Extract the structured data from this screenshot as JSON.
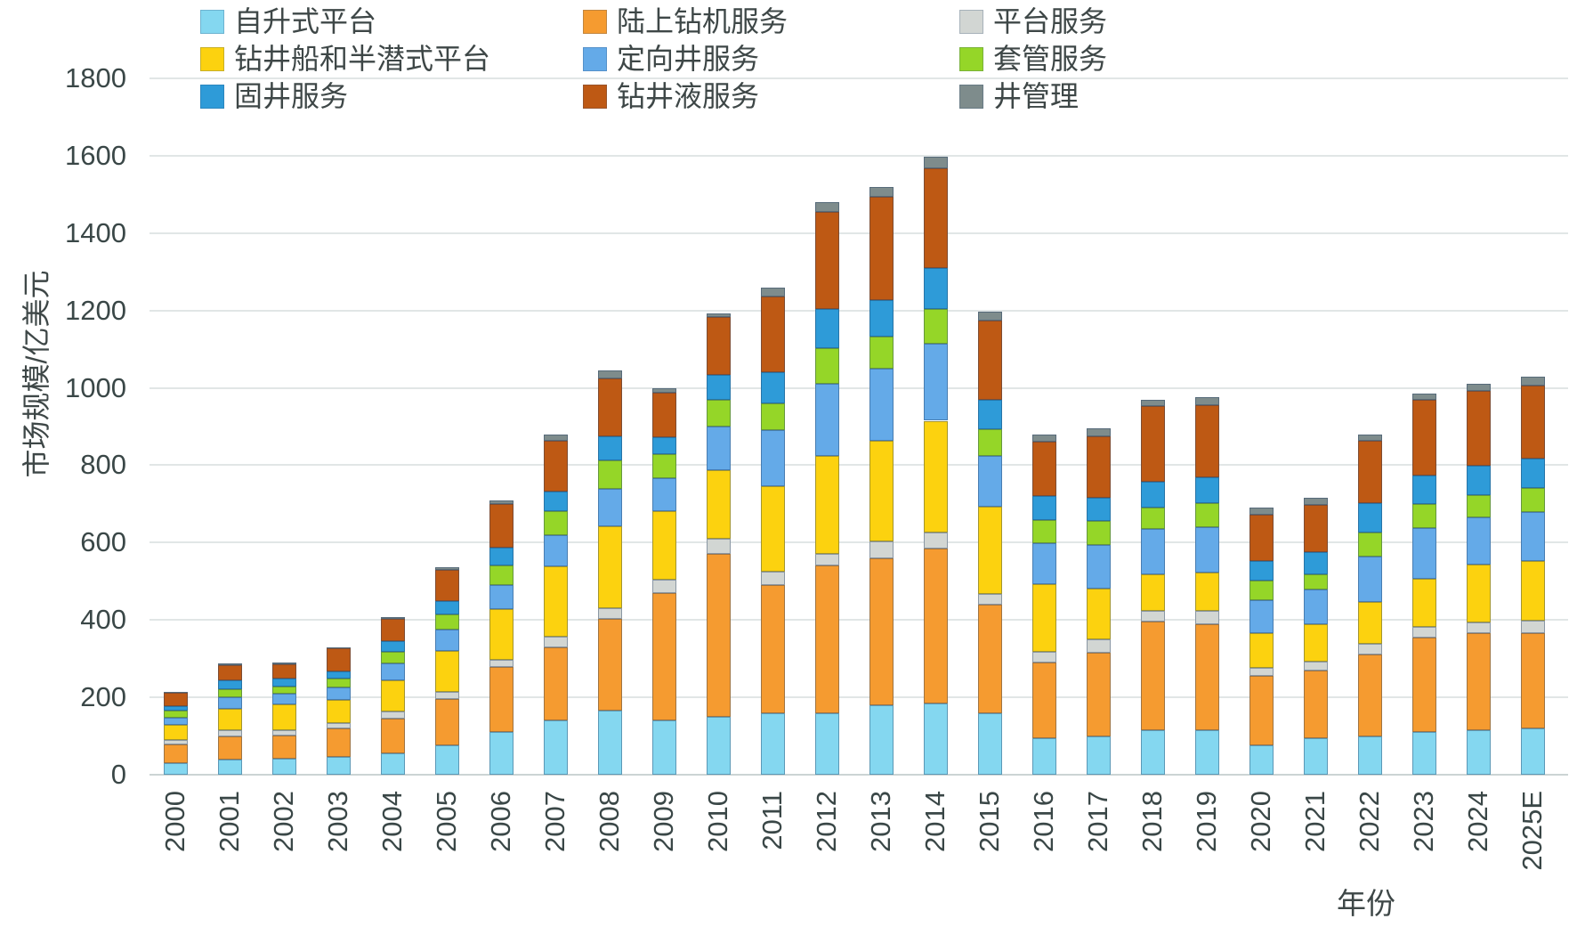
{
  "chart_data": {
    "type": "bar",
    "stacked": true,
    "title": "",
    "xlabel": "年份",
    "ylabel": "市场规模/亿美元",
    "ylim": [
      0,
      1800
    ],
    "ytick_step": 200,
    "yticks": [
      0,
      200,
      400,
      600,
      800,
      1000,
      1200,
      1400,
      1600,
      1800
    ],
    "grid": true,
    "legend_position": "top",
    "categories": [
      "2000",
      "2001",
      "2002",
      "2003",
      "2004",
      "2005",
      "2006",
      "2007",
      "2008",
      "2009",
      "2010",
      "2011",
      "2012",
      "2013",
      "2014",
      "2015",
      "2016",
      "2017",
      "2018",
      "2019",
      "2020",
      "2021",
      "2022",
      "2023",
      "2024",
      "2025E"
    ],
    "series": [
      {
        "key": "jackup-platform",
        "name": "自升式平台",
        "color": "#84d7f0",
        "values": [
          30,
          39,
          42,
          46,
          55,
          75,
          110,
          140,
          165,
          140,
          150,
          160,
          160,
          180,
          185,
          160,
          95,
          100,
          115,
          115,
          75,
          95,
          100,
          110,
          115,
          120
        ]
      },
      {
        "key": "onshore-rig-services",
        "name": "陆上钻机服务",
        "color": "#f59b30",
        "values": [
          48,
          61,
          60,
          73,
          90,
          120,
          168,
          190,
          239,
          330,
          420,
          330,
          380,
          380,
          400,
          280,
          195,
          215,
          280,
          275,
          180,
          175,
          210,
          245,
          250,
          245
        ]
      },
      {
        "key": "platform-services",
        "name": "平台服务",
        "color": "#d2d6d3",
        "values": [
          11,
          15,
          13,
          15,
          18,
          20,
          20,
          27,
          27,
          35,
          40,
          35,
          30,
          42,
          40,
          28,
          28,
          35,
          28,
          33,
          22,
          23,
          28,
          28,
          29,
          33
        ]
      },
      {
        "key": "drillship-semisub-platform",
        "name": "钻井船和半潜式平台",
        "color": "#fcd20f",
        "values": [
          40,
          56,
          68,
          60,
          80,
          105,
          131,
          181,
          212,
          177,
          177,
          220,
          255,
          261,
          290,
          225,
          175,
          132,
          95,
          100,
          90,
          96,
          108,
          124,
          150,
          155
        ]
      },
      {
        "key": "directional-drilling-services",
        "name": "定向井服务",
        "color": "#64aae8",
        "values": [
          18,
          29,
          27,
          32,
          45,
          55,
          62,
          81,
          96,
          85,
          112,
          145,
          185,
          186,
          200,
          132,
          105,
          111,
          117,
          117,
          85,
          90,
          119,
          130,
          121,
          127
        ]
      },
      {
        "key": "casing-services",
        "name": "套管服务",
        "color": "#95d628",
        "values": [
          18,
          22,
          19,
          23,
          30,
          40,
          50,
          62,
          73,
          61,
          69,
          70,
          93,
          84,
          90,
          69,
          60,
          62,
          56,
          61,
          50,
          40,
          62,
          62,
          58,
          62
        ]
      },
      {
        "key": "cementing-services",
        "name": "固井服务",
        "color": "#2e9bd8",
        "values": [
          13,
          21,
          19,
          19,
          28,
          35,
          46,
          50,
          62,
          45,
          65,
          80,
          101,
          93,
          105,
          76,
          62,
          62,
          66,
          67,
          50,
          57,
          74,
          74,
          75,
          75
        ]
      },
      {
        "key": "drilling-fluid-services",
        "name": "钻井液服务",
        "color": "#be5914",
        "values": [
          33,
          41,
          38,
          58,
          57,
          80,
          112,
          133,
          150,
          115,
          150,
          195,
          251,
          269,
          257,
          205,
          140,
          157,
          196,
          188,
          120,
          122,
          162,
          195,
          194,
          190
        ]
      },
      {
        "key": "well-management",
        "name": "井管理",
        "color": "#7e8c8c",
        "values": [
          3,
          4,
          4,
          4,
          5,
          7,
          11,
          16,
          21,
          12,
          10,
          25,
          25,
          25,
          30,
          22,
          20,
          21,
          17,
          19,
          18,
          17,
          17,
          17,
          18,
          23
        ]
      }
    ]
  }
}
